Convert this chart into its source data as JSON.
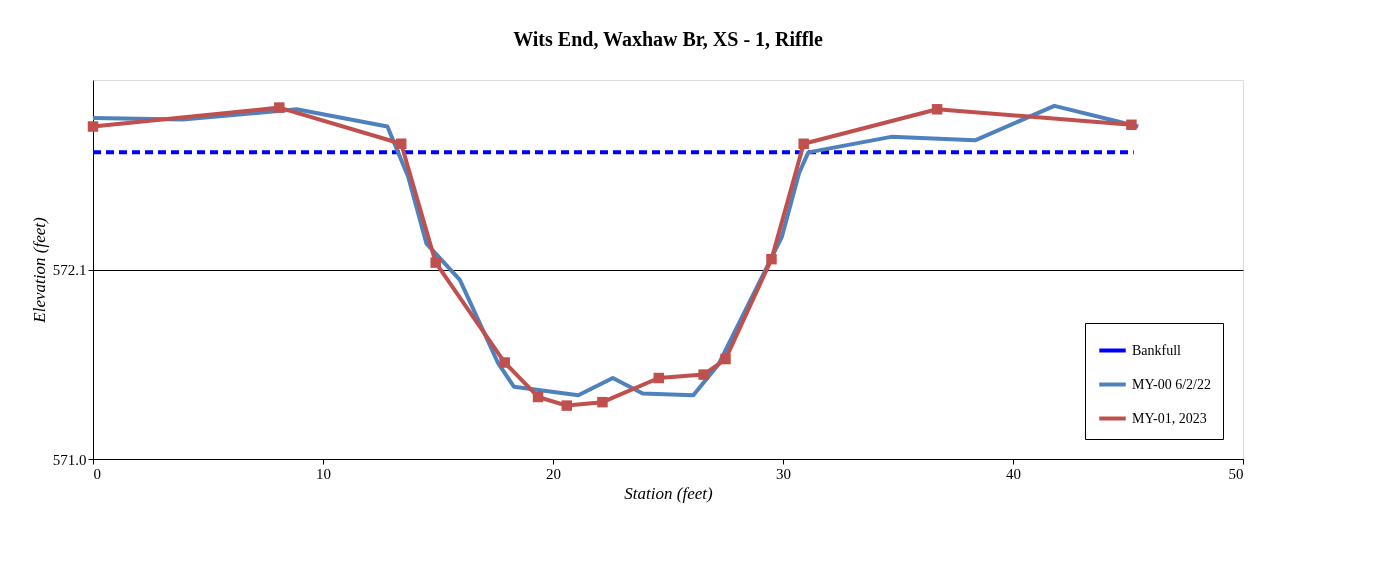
{
  "chart_data": {
    "type": "line",
    "title": "Wits End, Waxhaw Br, XS - 1, Riffle",
    "xlabel": "Station (feet)",
    "ylabel": "Elevation (feet)",
    "xlim": [
      0,
      50
    ],
    "xticks": [
      0,
      10,
      20,
      30,
      40,
      50
    ],
    "ylim": [
      571.0,
      573.2
    ],
    "yticks": [
      {
        "value": 571.0,
        "label": "571.0"
      },
      {
        "value": 572.1,
        "label": "572.1"
      }
    ],
    "grid": "y",
    "legend": "bottom right",
    "series": [
      {
        "name": "Bankfull",
        "color": "#0000ff",
        "line_style": "dashed",
        "marker": "none",
        "x": [
          0,
          45.25
        ],
        "values": [
          572.78,
          572.78
        ]
      },
      {
        "name": "MY-00 6/2/22",
        "color": "#4f81bd",
        "line_style": "solid",
        "marker": "none",
        "x": [
          0,
          3.9,
          8.85,
          12.8,
          13.7,
          14.5,
          15.95,
          17.6,
          18.3,
          21.1,
          22.6,
          23.9,
          26.1,
          27.2,
          29.1,
          29.95,
          30.7,
          31.1,
          34.7,
          38.35,
          41.8,
          45.45
        ],
        "values": [
          572.98,
          572.97,
          573.03,
          572.93,
          572.64,
          572.25,
          572.04,
          571.56,
          571.42,
          571.37,
          571.47,
          571.38,
          571.37,
          571.55,
          572.06,
          572.29,
          572.66,
          572.78,
          572.87,
          572.85,
          573.05,
          572.93
        ]
      },
      {
        "name": "MY-01, 2023",
        "color": "#c0504d",
        "line_style": "solid",
        "marker": "square",
        "x": [
          0,
          8.1,
          13.4,
          14.9,
          17.9,
          19.35,
          20.6,
          22.15,
          24.6,
          26.55,
          27.5,
          29.5,
          30.9,
          36.7,
          45.15
        ],
        "values": [
          572.93,
          573.04,
          572.83,
          572.14,
          571.56,
          571.36,
          571.31,
          571.33,
          571.47,
          571.49,
          571.58,
          572.16,
          572.83,
          573.03,
          572.94
        ]
      }
    ]
  }
}
